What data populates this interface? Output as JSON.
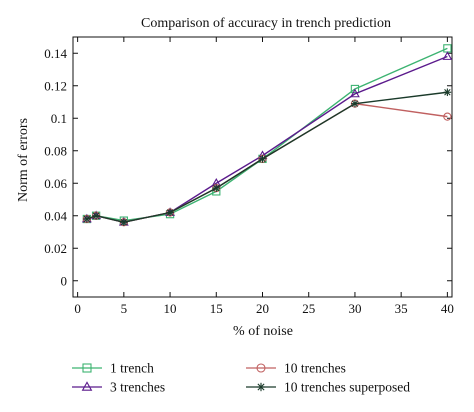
{
  "chart_data": {
    "type": "line",
    "title": "Comparison of accuracy in trench prediction",
    "xlabel": "% of noise",
    "ylabel": "Norm of errors",
    "xlim": [
      -0.5,
      40.5
    ],
    "ylim": [
      -0.01,
      0.15
    ],
    "xticks": [
      0,
      5,
      10,
      15,
      20,
      25,
      30,
      35,
      40
    ],
    "yticks": [
      0,
      0.02,
      0.04,
      0.06,
      0.08,
      0.1,
      0.12,
      0.14
    ],
    "ytick_labels": [
      "0",
      "0.02",
      "0.04",
      "0.06",
      "0.08",
      "0.1",
      "0.12",
      "0.14"
    ],
    "grid": false,
    "legend_position": "bottom",
    "x": [
      1,
      2,
      5,
      10,
      15,
      20,
      30,
      40
    ],
    "series": [
      {
        "name": "1 trench",
        "color": "#3cb371",
        "marker": "square",
        "values": [
          0.038,
          0.04,
          0.037,
          0.041,
          0.055,
          0.075,
          0.118,
          0.143
        ]
      },
      {
        "name": "3 trenches",
        "color": "#5b1a8c",
        "marker": "triangle",
        "values": [
          0.038,
          0.04,
          0.036,
          0.042,
          0.06,
          0.077,
          0.115,
          0.138
        ]
      },
      {
        "name": "10 trenches",
        "color": "#c06060",
        "marker": "circle",
        "values": [
          0.038,
          0.04,
          0.036,
          0.042,
          0.057,
          0.075,
          0.109,
          0.101
        ]
      },
      {
        "name": "10 trenches superposed",
        "color": "#1a3a2a",
        "marker": "asterisk",
        "values": [
          0.038,
          0.04,
          0.036,
          0.042,
          0.057,
          0.075,
          0.109,
          0.116
        ]
      }
    ]
  }
}
